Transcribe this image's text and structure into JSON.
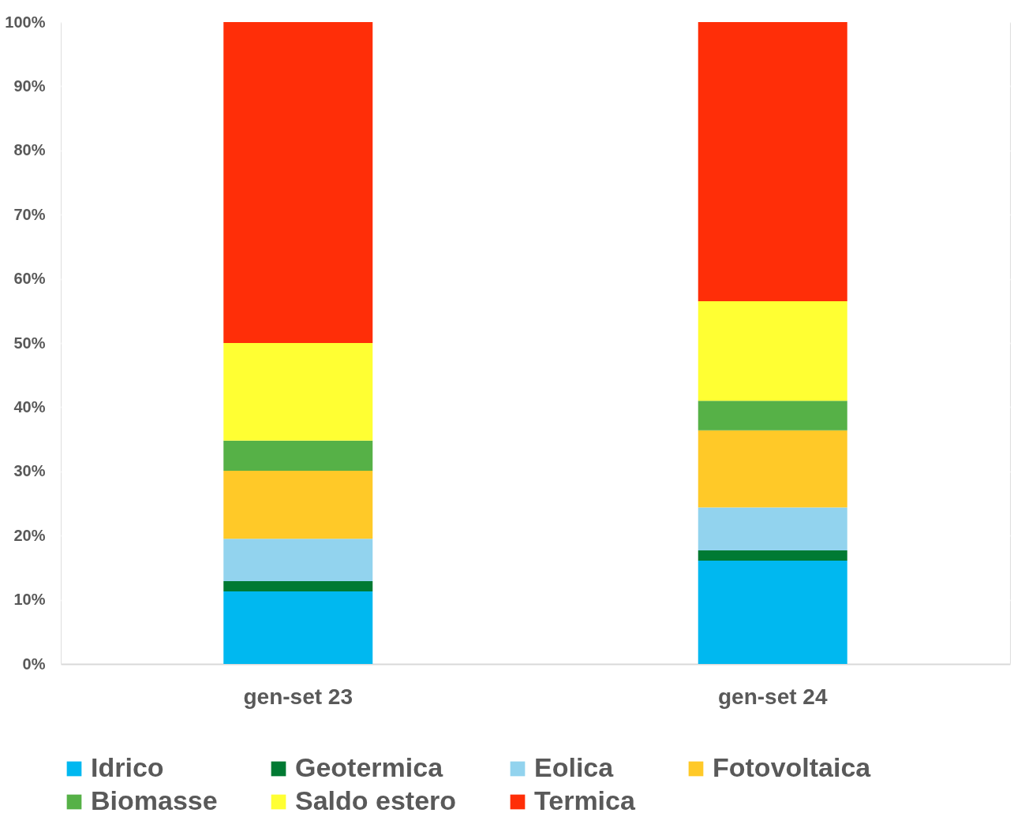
{
  "chart_data": {
    "type": "bar",
    "stacked": true,
    "categories": [
      "gen-set  23",
      "gen-set 24"
    ],
    "series": [
      {
        "name": "Idrico",
        "color": "#00b8f0",
        "values": [
          11.3,
          16.1
        ]
      },
      {
        "name": "Geotermica",
        "color": "#007a33",
        "values": [
          1.6,
          1.6
        ]
      },
      {
        "name": "Eolica",
        "color": "#92d3ee",
        "values": [
          6.6,
          6.7
        ]
      },
      {
        "name": "Fotovoltaica",
        "color": "#ffc928",
        "values": [
          10.6,
          12.0
        ]
      },
      {
        "name": "Biomasse",
        "color": "#56b147",
        "values": [
          4.7,
          4.6
        ]
      },
      {
        "name": "Saldo estero",
        "color": "#ffff33",
        "values": [
          15.2,
          15.5
        ]
      },
      {
        "name": "Termica",
        "color": "#ff2e08",
        "values": [
          50.0,
          43.5
        ]
      }
    ],
    "ylim": [
      0,
      100
    ],
    "yticks": [
      {
        "value": 0,
        "label": "0%"
      },
      {
        "value": 10,
        "label": "10%"
      },
      {
        "value": 20,
        "label": "20%"
      },
      {
        "value": 30,
        "label": "30%"
      },
      {
        "value": 40,
        "label": "40%"
      },
      {
        "value": 50,
        "label": "50%"
      },
      {
        "value": 60,
        "label": "60%"
      },
      {
        "value": 70,
        "label": "70%"
      },
      {
        "value": 80,
        "label": "80%"
      },
      {
        "value": 90,
        "label": "90%"
      },
      {
        "value": 100,
        "label": "100%"
      }
    ],
    "grid": "y",
    "legend": "bottom"
  }
}
